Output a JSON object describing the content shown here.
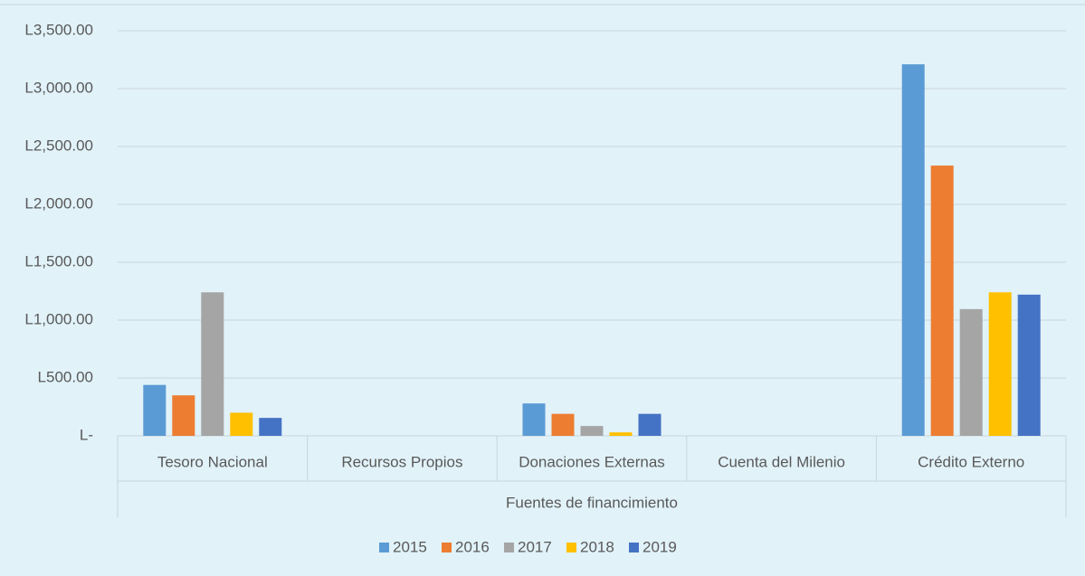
{
  "chart_data": {
    "type": "bar",
    "categories": [
      "Tesoro Nacional",
      "Recursos Propios",
      "Donaciones Externas",
      "Cuenta del Milenio",
      "Crédito Externo"
    ],
    "x_label": "Fuentes de financimiento",
    "series": [
      {
        "name": "2015",
        "color": "#5b9bd5",
        "values": [
          440,
          0,
          280,
          0,
          3210
        ]
      },
      {
        "name": "2016",
        "color": "#ed7d31",
        "values": [
          350,
          0,
          190,
          0,
          2335
        ]
      },
      {
        "name": "2017",
        "color": "#a5a5a5",
        "values": [
          1240,
          0,
          85,
          0,
          1095
        ]
      },
      {
        "name": "2018",
        "color": "#ffc000",
        "values": [
          200,
          0,
          30,
          0,
          1240
        ]
      },
      {
        "name": "2019",
        "color": "#4472c4",
        "values": [
          155,
          0,
          190,
          0,
          1220
        ]
      }
    ],
    "ylim": [
      0,
      3500
    ],
    "yticks": [
      {
        "value": 0,
        "label": "L-"
      },
      {
        "value": 500,
        "label": "L500.00"
      },
      {
        "value": 1000,
        "label": "L1,000.00"
      },
      {
        "value": 1500,
        "label": "L1,500.00"
      },
      {
        "value": 2000,
        "label": "L2,000.00"
      },
      {
        "value": 2500,
        "label": "L2,500.00"
      },
      {
        "value": 3000,
        "label": "L3,000.00"
      },
      {
        "value": 3500,
        "label": "L3,500.00"
      }
    ],
    "grid": true,
    "legend": "bottom"
  }
}
